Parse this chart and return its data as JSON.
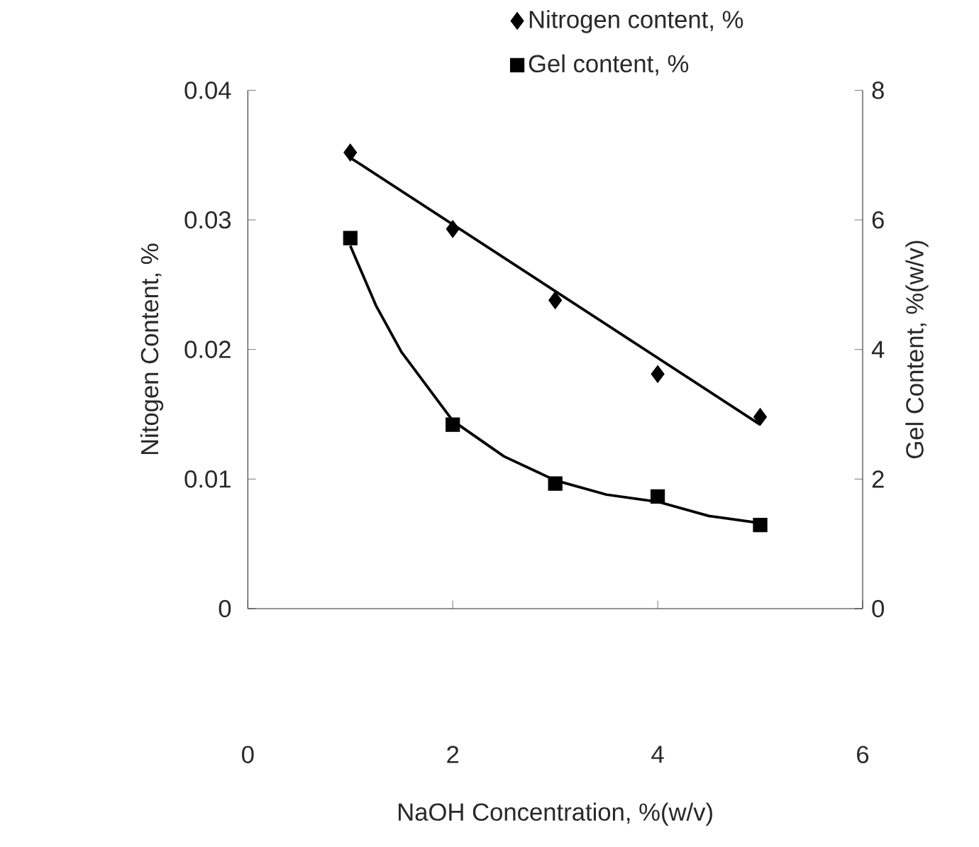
{
  "chart_data": {
    "type": "scatter",
    "xlabel": "NaOH Concentration, %(w/v)",
    "ylabel": "Nitogen Content, %",
    "y2label": "Gel Content, %(w/v)",
    "x": [
      1,
      2,
      3,
      4,
      5
    ],
    "series": [
      {
        "name": "Nitrogen content, %",
        "color": "#000000",
        "values": [
          0.0352,
          0.0293,
          0.0238,
          0.0181,
          0.0148
        ],
        "marker": "diamond"
      },
      {
        "name": "Gel content, %",
        "color": "#000000",
        "values": [
          5.72,
          2.84,
          1.93,
          1.73,
          1.29
        ],
        "marker": "square",
        "axis": "y2"
      },
      {
        "type": "line",
        "color": "#000000",
        "x": [
          1,
          5
        ],
        "values": [
          0.0348,
          0.0142
        ],
        "marker": "none"
      },
      {
        "type": "line",
        "color": "#000000",
        "x": [
          1,
          1.25,
          1.5,
          2,
          2.5,
          3,
          3.5,
          4,
          4.5,
          5
        ],
        "values": [
          5.6,
          4.68,
          3.96,
          2.9,
          2.35,
          1.98,
          1.76,
          1.65,
          1.43,
          1.32
        ],
        "marker": "none",
        "axis": "y2"
      }
    ],
    "xlim": [
      0,
      6
    ],
    "xticks": [
      0,
      2,
      4,
      6
    ],
    "ylim": [
      0,
      0.04
    ],
    "yticks": [
      0,
      0.01,
      0.02,
      0.03,
      0.04
    ],
    "y2lim": [
      0,
      8
    ],
    "y2ticks": [
      0,
      2,
      4,
      6,
      8
    ],
    "legend": "top"
  }
}
